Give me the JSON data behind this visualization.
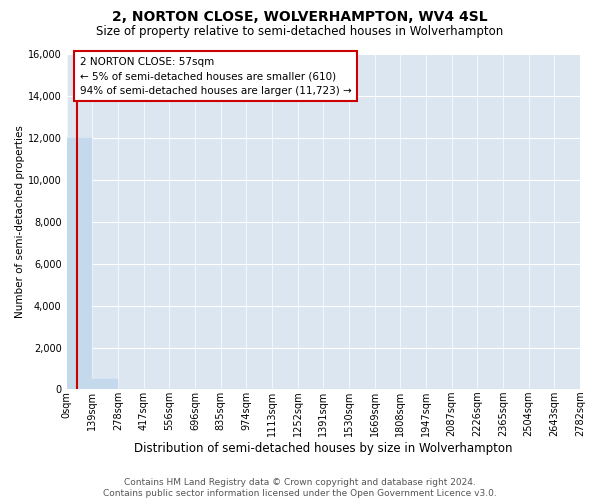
{
  "title": "2, NORTON CLOSE, WOLVERHAMPTON, WV4 4SL",
  "subtitle": "Size of property relative to semi-detached houses in Wolverhampton",
  "xlabel": "Distribution of semi-detached houses by size in Wolverhampton",
  "ylabel": "Number of semi-detached properties",
  "footer_line1": "Contains HM Land Registry data © Crown copyright and database right 2024.",
  "footer_line2": "Contains public sector information licensed under the Open Government Licence v3.0.",
  "bin_labels": [
    "0sqm",
    "139sqm",
    "278sqm",
    "417sqm",
    "556sqm",
    "696sqm",
    "835sqm",
    "974sqm",
    "1113sqm",
    "1252sqm",
    "1391sqm",
    "1530sqm",
    "1669sqm",
    "1808sqm",
    "1947sqm",
    "2087sqm",
    "2226sqm",
    "2365sqm",
    "2504sqm",
    "2643sqm",
    "2782sqm"
  ],
  "bar_values": [
    12000,
    480,
    0,
    0,
    0,
    0,
    0,
    0,
    0,
    0,
    0,
    0,
    0,
    0,
    0,
    0,
    0,
    0,
    0,
    0
  ],
  "bar_color": "#c5d9ed",
  "bar_edge_color": "#c5d9ed",
  "annotation_line1": "2 NORTON CLOSE: 57sqm",
  "annotation_line2": "← 5% of semi-detached houses are smaller (610)",
  "annotation_line3": "94% of semi-detached houses are larger (11,723) →",
  "vline_color": "#cc0000",
  "annotation_box_edge_color": "#cc0000",
  "ylim_max": 16000,
  "yticks": [
    0,
    2000,
    4000,
    6000,
    8000,
    10000,
    12000,
    14000,
    16000
  ],
  "bg_color": "#dce6f1",
  "fig_bg_color": "#ffffff",
  "grid_color": "#ffffff",
  "title_fontsize": 10,
  "subtitle_fontsize": 8.5,
  "xlabel_fontsize": 8.5,
  "ylabel_fontsize": 7.5,
  "tick_fontsize": 7,
  "annotation_fontsize": 7.5,
  "footer_fontsize": 6.5
}
